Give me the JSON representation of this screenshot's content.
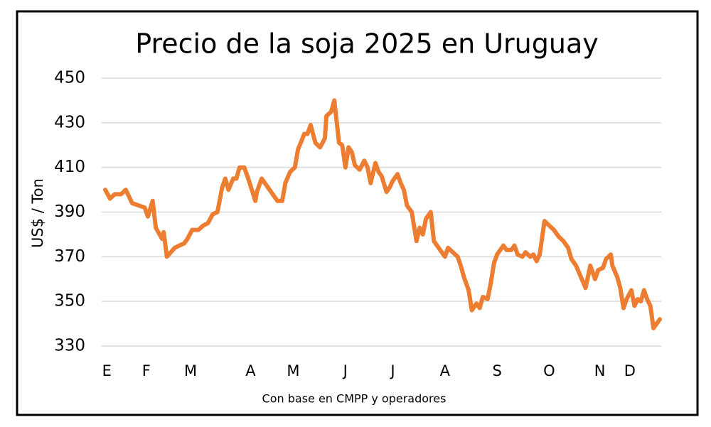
{
  "chart_data": {
    "type": "line",
    "title": "Precio de la soja 2025 en Uruguay",
    "y_label": "US$ / Ton",
    "x_label": "Con base en CMPP y operadores",
    "x": [
      0,
      3,
      6,
      10,
      13,
      17,
      21,
      25,
      27,
      30,
      32,
      36,
      37,
      39,
      44,
      47,
      50,
      52,
      55,
      59,
      62,
      65,
      68,
      71,
      74,
      76,
      78,
      81,
      83,
      85,
      88,
      91,
      95,
      96,
      99,
      102,
      105,
      109,
      112,
      114,
      117,
      120,
      122,
      126,
      128,
      130,
      133,
      136,
      139,
      140,
      143,
      145,
      148,
      150,
      152,
      154,
      156,
      158,
      161,
      164,
      166,
      168,
      171,
      173,
      175,
      178,
      180,
      182,
      185,
      187,
      189,
      191,
      194,
      197,
      199,
      201,
      203,
      206,
      208,
      210,
      212,
      215,
      217,
      220,
      223,
      225,
      227,
      230,
      232,
      235,
      237,
      239,
      242,
      244,
      246,
      248,
      252,
      254,
      257,
      259,
      261,
      264,
      266,
      269,
      271,
      273,
      275,
      278,
      281,
      284,
      287,
      290,
      293,
      295,
      298,
      301,
      304,
      307,
      310,
      312,
      315,
      317,
      320,
      321,
      324,
      326,
      328,
      330,
      333,
      335,
      337,
      339,
      341,
      343,
      345,
      347,
      349,
      351
    ],
    "series": [
      {
        "name": "Precio",
        "color": "#ed7d31",
        "values": [
          400,
          396,
          398,
          398,
          400,
          394,
          393,
          392,
          388,
          395,
          383,
          378,
          381,
          370,
          374,
          375,
          376,
          378,
          382,
          382,
          384,
          385,
          389,
          390,
          401,
          405,
          400,
          405,
          405,
          410,
          410,
          404,
          395,
          399,
          405,
          402,
          399,
          395,
          395,
          403,
          408,
          410,
          418,
          425,
          425,
          429,
          421,
          419,
          423,
          433,
          435,
          440,
          421,
          420,
          410,
          419,
          417,
          411,
          409,
          413,
          410,
          403,
          412,
          408,
          406,
          399,
          401,
          404,
          407,
          403,
          400,
          393,
          390,
          377,
          383,
          380,
          387,
          390,
          377,
          375,
          373,
          370,
          374,
          372,
          370,
          366,
          361,
          355,
          346,
          349,
          347,
          352,
          351,
          358,
          367,
          371,
          375,
          373,
          373,
          375,
          371,
          370,
          372,
          370,
          371,
          368,
          371,
          386,
          384,
          382,
          379,
          377,
          374,
          369,
          366,
          361,
          356,
          366,
          360,
          364,
          365,
          369,
          371,
          366,
          361,
          356,
          347,
          351,
          355,
          348,
          351,
          350,
          355,
          351,
          348,
          338,
          340,
          342
        ]
      }
    ],
    "xlim": [
      0,
      351
    ],
    "xticks": [
      {
        "value": 1,
        "label": "E"
      },
      {
        "value": 26,
        "label": "F"
      },
      {
        "value": 54,
        "label": "M"
      },
      {
        "value": 92,
        "label": "A"
      },
      {
        "value": 119,
        "label": "M"
      },
      {
        "value": 152,
        "label": "J"
      },
      {
        "value": 182,
        "label": "J"
      },
      {
        "value": 215,
        "label": "A"
      },
      {
        "value": 248,
        "label": "S"
      },
      {
        "value": 281,
        "label": "O"
      },
      {
        "value": 313,
        "label": "N"
      },
      {
        "value": 332,
        "label": "D"
      }
    ],
    "ylim": [
      330,
      450
    ],
    "yticks": [
      330,
      350,
      370,
      390,
      410,
      430,
      450
    ],
    "grid": true
  }
}
